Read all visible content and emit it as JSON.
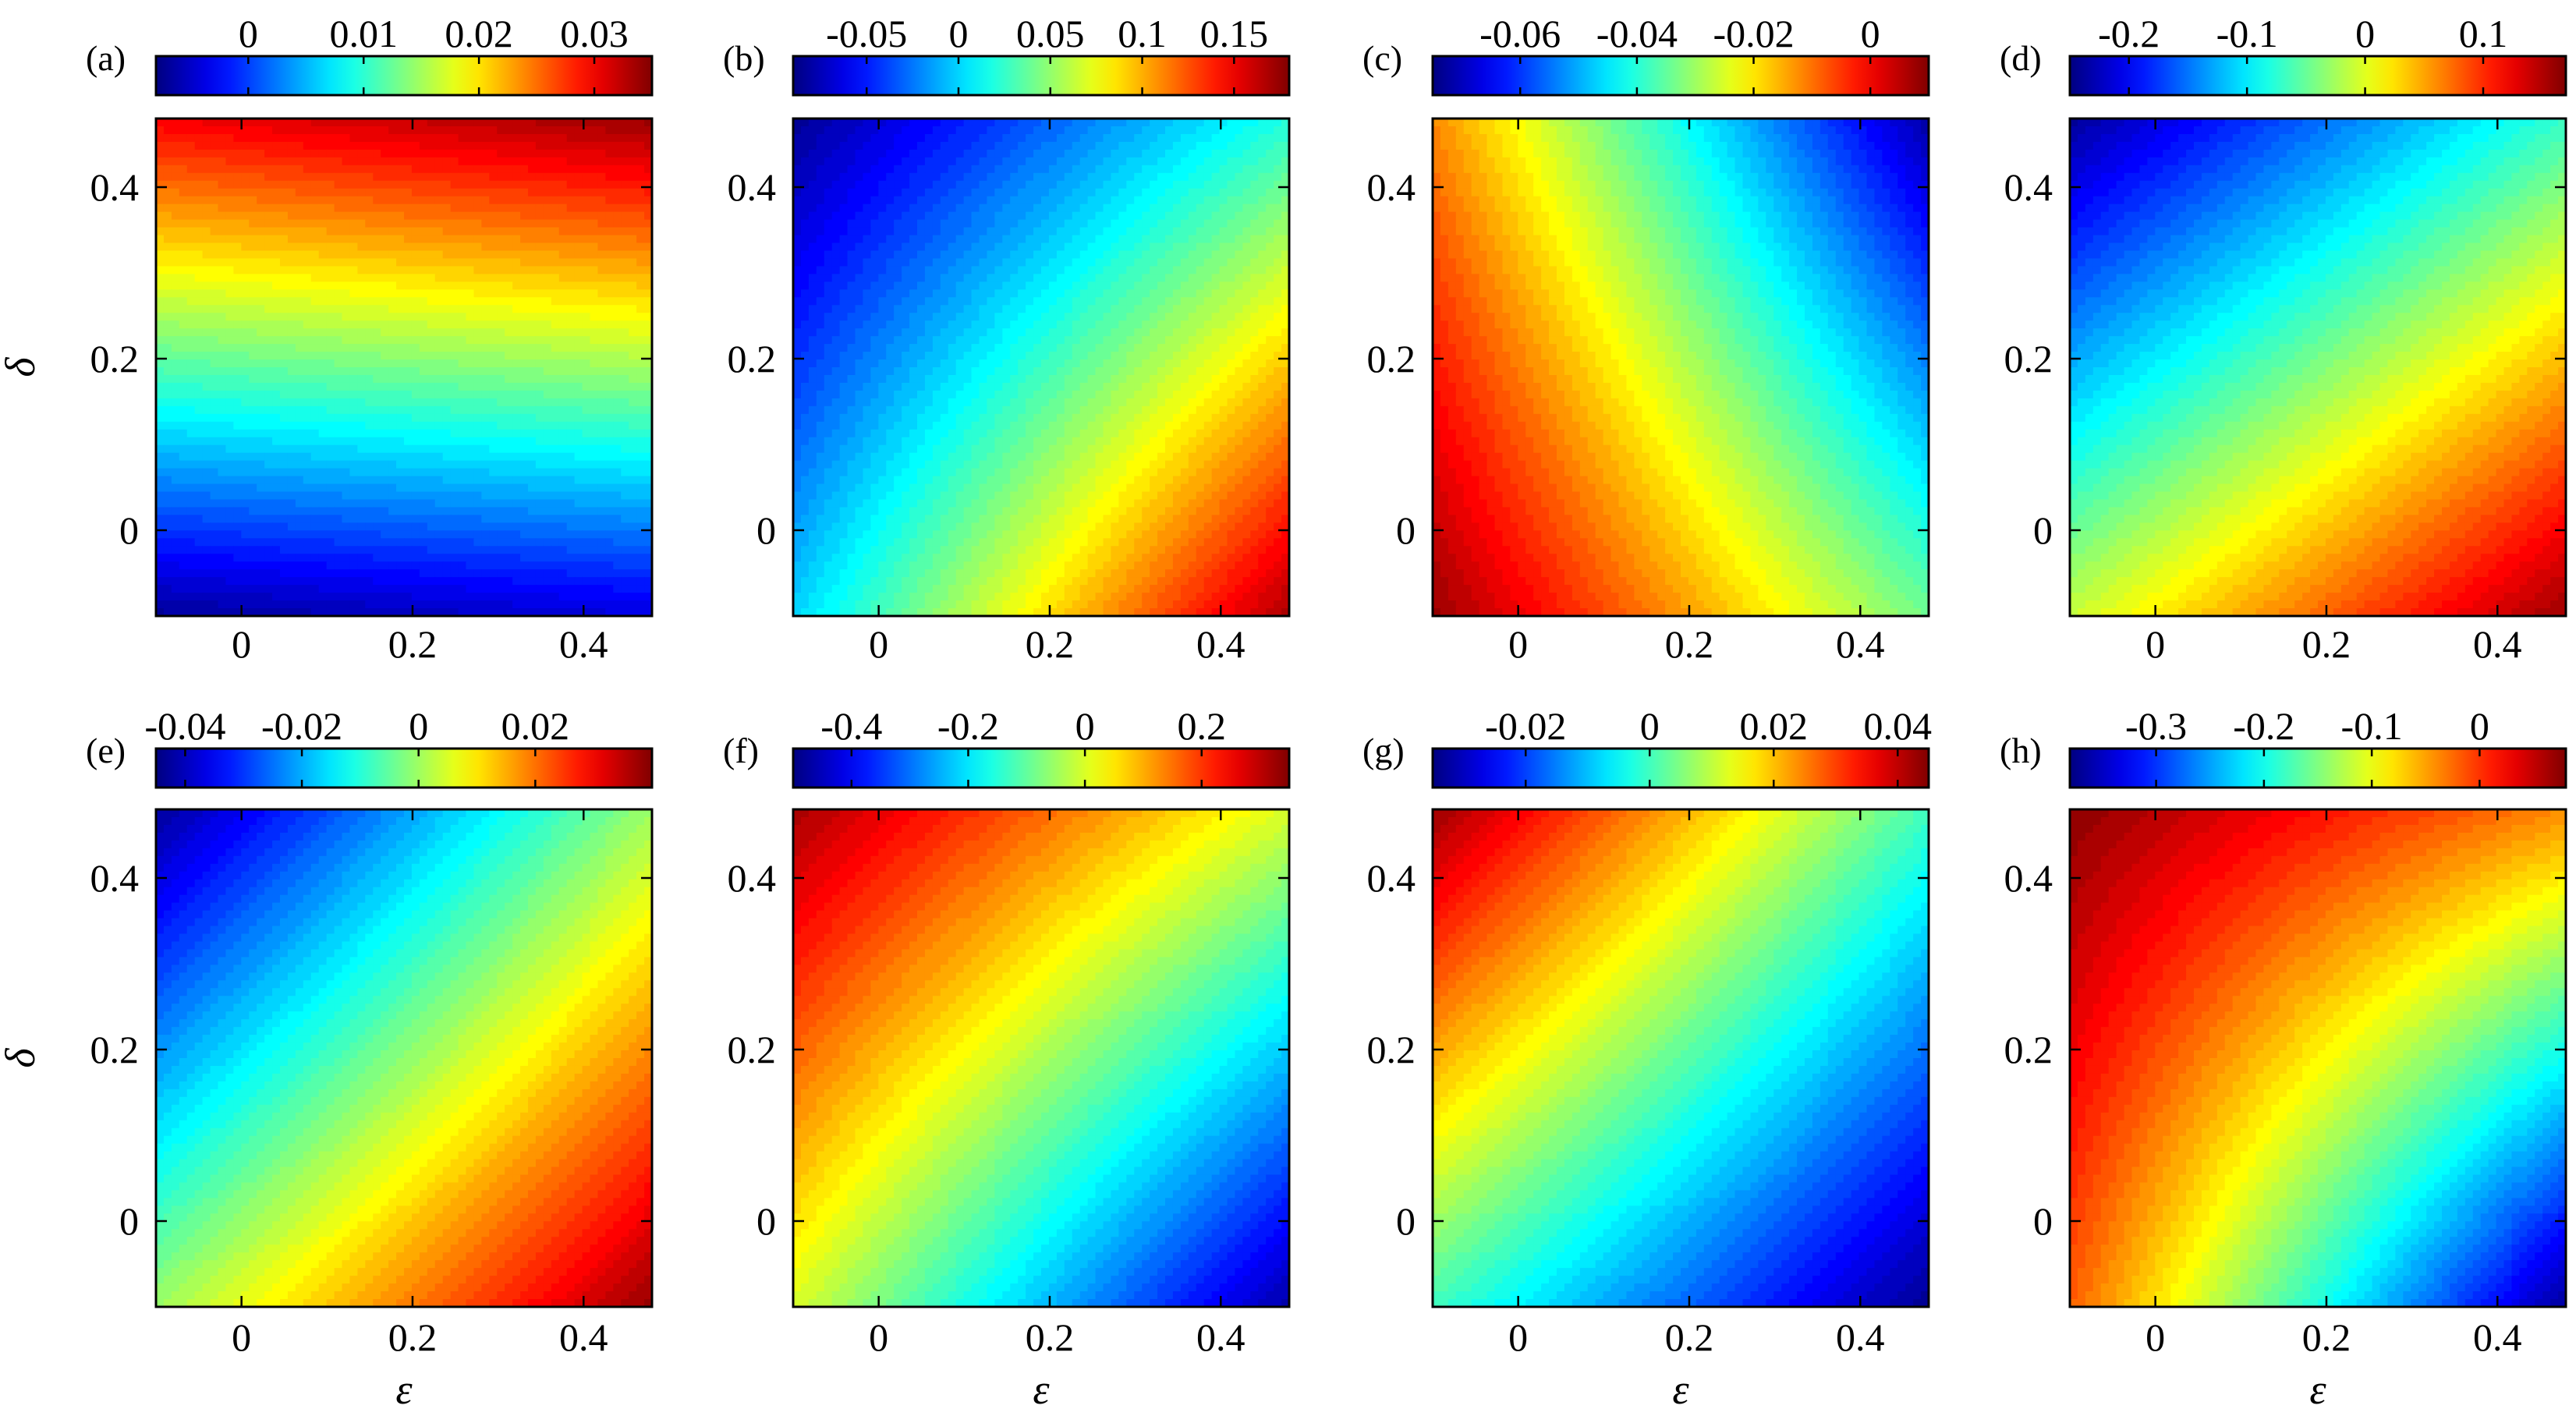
{
  "figure": {
    "x_axis_label": "ε",
    "y_axis_label": "δ"
  },
  "chart_data": [
    {
      "type": "heatmap",
      "panel_label": "(a)",
      "colormap": "jet",
      "xlim": [
        -0.1,
        0.48
      ],
      "ylim": [
        -0.1,
        0.48
      ],
      "x_ticks": [
        0,
        0.2,
        0.4
      ],
      "x_tick_labels": [
        "0",
        "0.2",
        "0.4"
      ],
      "y_ticks": [
        0,
        0.2,
        0.4
      ],
      "y_tick_labels": [
        "0",
        "0.2",
        "0.4"
      ],
      "xlabel": "",
      "ylabel": "δ",
      "colorbar": {
        "range": [
          -0.008,
          0.035
        ],
        "ticks": [
          0,
          0.01,
          0.02,
          0.03
        ],
        "tick_labels": [
          "0",
          "0.01",
          "0.02",
          "0.03"
        ]
      },
      "corner_values": {
        "eps_min_delta_min": -0.007,
        "eps_max_delta_min": -0.004,
        "eps_min_delta_max": 0.03,
        "eps_max_delta_max": 0.034
      }
    },
    {
      "type": "heatmap",
      "panel_label": "(b)",
      "colormap": "jet",
      "xlim": [
        -0.1,
        0.48
      ],
      "ylim": [
        -0.1,
        0.48
      ],
      "x_ticks": [
        0,
        0.2,
        0.4
      ],
      "x_tick_labels": [
        "0",
        "0.2",
        "0.4"
      ],
      "y_ticks": [
        0,
        0.2,
        0.4
      ],
      "y_tick_labels": [
        "0",
        "0.2",
        "0.4"
      ],
      "xlabel": "",
      "ylabel": "",
      "colorbar": {
        "range": [
          -0.09,
          0.18
        ],
        "ticks": [
          -0.05,
          0,
          0.05,
          0.1,
          0.15
        ],
        "tick_labels": [
          "-0.05",
          "0",
          "0.05",
          "0.1",
          "0.15"
        ]
      },
      "corner_values": {
        "eps_min_delta_min": 0.0,
        "eps_max_delta_min": 0.17,
        "eps_min_delta_max": -0.085,
        "eps_max_delta_max": 0.02
      }
    },
    {
      "type": "heatmap",
      "panel_label": "(c)",
      "colormap": "jet",
      "xlim": [
        -0.1,
        0.48
      ],
      "ylim": [
        -0.1,
        0.48
      ],
      "x_ticks": [
        0,
        0.2,
        0.4
      ],
      "x_tick_labels": [
        "0",
        "0.2",
        "0.4"
      ],
      "y_ticks": [
        0,
        0.2,
        0.4
      ],
      "y_tick_labels": [
        "0",
        "0.2",
        "0.4"
      ],
      "xlabel": "",
      "ylabel": "",
      "colorbar": {
        "range": [
          -0.075,
          0.01
        ],
        "ticks": [
          -0.06,
          -0.04,
          -0.02,
          0
        ],
        "tick_labels": [
          "-0.06",
          "-0.04",
          "-0.02",
          "0"
        ]
      },
      "corner_values": {
        "eps_min_delta_min": 0.008,
        "eps_max_delta_min": -0.034,
        "eps_min_delta_max": -0.012,
        "eps_max_delta_max": -0.072
      }
    },
    {
      "type": "heatmap",
      "panel_label": "(d)",
      "colormap": "jet",
      "xlim": [
        -0.1,
        0.48
      ],
      "ylim": [
        -0.1,
        0.48
      ],
      "x_ticks": [
        0,
        0.2,
        0.4
      ],
      "x_tick_labels": [
        "0",
        "0.2",
        "0.4"
      ],
      "y_ticks": [
        0,
        0.2,
        0.4
      ],
      "y_tick_labels": [
        "0",
        "0.2",
        "0.4"
      ],
      "xlabel": "",
      "ylabel": "",
      "colorbar": {
        "range": [
          -0.25,
          0.17
        ],
        "ticks": [
          -0.2,
          -0.1,
          0,
          0.1
        ],
        "tick_labels": [
          "-0.2",
          "-0.1",
          "0",
          "0.1"
        ]
      },
      "corner_values": {
        "eps_min_delta_min": -0.01,
        "eps_max_delta_min": 0.16,
        "eps_min_delta_max": -0.24,
        "eps_max_delta_max": -0.07
      }
    },
    {
      "type": "heatmap",
      "panel_label": "(e)",
      "colormap": "jet",
      "xlim": [
        -0.1,
        0.48
      ],
      "ylim": [
        -0.1,
        0.48
      ],
      "x_ticks": [
        0,
        0.2,
        0.4
      ],
      "x_tick_labels": [
        "0",
        "0.2",
        "0.4"
      ],
      "y_ticks": [
        0,
        0.2,
        0.4
      ],
      "y_tick_labels": [
        "0",
        "0.2",
        "0.4"
      ],
      "xlabel": "ε",
      "ylabel": "δ",
      "colorbar": {
        "range": [
          -0.045,
          0.04
        ],
        "ticks": [
          -0.04,
          -0.02,
          0,
          0.02
        ],
        "tick_labels": [
          "-0.04",
          "-0.02",
          "0",
          "0.02"
        ]
      },
      "corner_values": {
        "eps_min_delta_min": 0.0,
        "eps_max_delta_min": 0.038,
        "eps_min_delta_max": -0.043,
        "eps_max_delta_max": 0.0
      }
    },
    {
      "type": "heatmap",
      "panel_label": "(f)",
      "colormap": "jet",
      "xlim": [
        -0.1,
        0.48
      ],
      "ylim": [
        -0.1,
        0.48
      ],
      "x_ticks": [
        0,
        0.2,
        0.4
      ],
      "x_tick_labels": [
        "0",
        "0.2",
        "0.4"
      ],
      "y_ticks": [
        0,
        0.2,
        0.4
      ],
      "y_tick_labels": [
        "0",
        "0.2",
        "0.4"
      ],
      "xlabel": "ε",
      "ylabel": "",
      "colorbar": {
        "range": [
          -0.5,
          0.35
        ],
        "ticks": [
          -0.4,
          -0.2,
          0,
          0.2
        ],
        "tick_labels": [
          "-0.4",
          "-0.2",
          "0",
          "0.2"
        ]
      },
      "corner_values": {
        "eps_min_delta_min": 0.0,
        "eps_max_delta_min": -0.47,
        "eps_min_delta_max": 0.32,
        "eps_max_delta_max": 0.0
      }
    },
    {
      "type": "heatmap",
      "panel_label": "(g)",
      "colormap": "jet",
      "xlim": [
        -0.1,
        0.48
      ],
      "ylim": [
        -0.1,
        0.48
      ],
      "x_ticks": [
        0,
        0.2,
        0.4
      ],
      "x_tick_labels": [
        "0",
        "0.2",
        "0.4"
      ],
      "y_ticks": [
        0,
        0.2,
        0.4
      ],
      "y_tick_labels": [
        "0",
        "0.2",
        "0.4"
      ],
      "xlabel": "ε",
      "ylabel": "",
      "colorbar": {
        "range": [
          -0.035,
          0.045
        ],
        "ticks": [
          -0.02,
          0,
          0.02,
          0.04
        ],
        "tick_labels": [
          "-0.02",
          "0",
          "0.02",
          "0.04"
        ]
      },
      "corner_values": {
        "eps_min_delta_min": 0.0,
        "eps_max_delta_min": -0.034,
        "eps_min_delta_max": 0.043,
        "eps_max_delta_max": 0.0
      }
    },
    {
      "type": "heatmap",
      "panel_label": "(h)",
      "colormap": "jet",
      "xlim": [
        -0.1,
        0.48
      ],
      "ylim": [
        -0.1,
        0.48
      ],
      "x_ticks": [
        0,
        0.2,
        0.4
      ],
      "x_tick_labels": [
        "0",
        "0.2",
        "0.4"
      ],
      "y_ticks": [
        0,
        0.2,
        0.4
      ],
      "y_tick_labels": [
        "0",
        "0.2",
        "0.4"
      ],
      "xlabel": "ε",
      "ylabel": "",
      "colorbar": {
        "range": [
          -0.38,
          0.08
        ],
        "ticks": [
          -0.3,
          -0.2,
          -0.1,
          0
        ],
        "tick_labels": [
          "-0.3",
          "-0.2",
          "-0.1",
          "0"
        ]
      },
      "corner_values": {
        "eps_min_delta_min": -0.02,
        "eps_max_delta_min": -0.37,
        "eps_min_delta_max": 0.075,
        "eps_max_delta_max": -0.04
      }
    }
  ]
}
